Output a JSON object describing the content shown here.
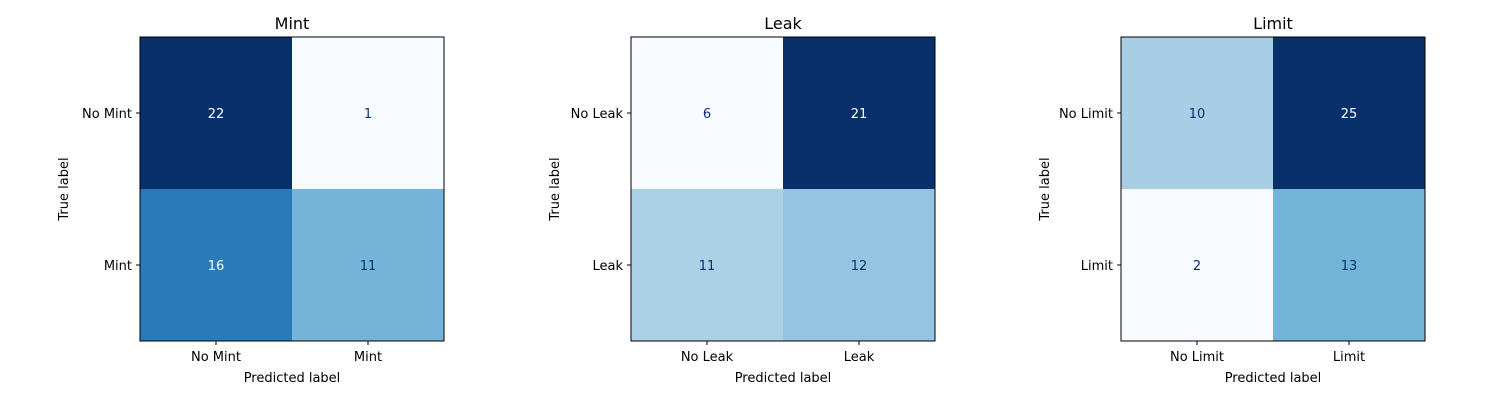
{
  "chart_data": [
    {
      "type": "heatmap",
      "title": "Mint",
      "xlabel": "Predicted label",
      "ylabel": "True label",
      "x_categories": [
        "No Mint",
        "Mint"
      ],
      "y_categories": [
        "No Mint",
        "Mint"
      ],
      "values": [
        [
          22,
          1
        ],
        [
          16,
          11
        ]
      ],
      "grid": false
    },
    {
      "type": "heatmap",
      "title": "Leak",
      "xlabel": "Predicted label",
      "ylabel": "True label",
      "x_categories": [
        "No Leak",
        "Leak"
      ],
      "y_categories": [
        "No Leak",
        "Leak"
      ],
      "values": [
        [
          6,
          21
        ],
        [
          11,
          12
        ]
      ],
      "grid": false
    },
    {
      "type": "heatmap",
      "title": "Limit",
      "xlabel": "Predicted label",
      "ylabel": "True label",
      "x_categories": [
        "No Limit",
        "Limit"
      ],
      "y_categories": [
        "No Limit",
        "Limit"
      ],
      "values": [
        [
          10,
          25
        ],
        [
          2,
          13
        ]
      ],
      "grid": false
    }
  ],
  "colors": {
    "low": "#f7fbff",
    "mid1": "#c6dbef",
    "mid2": "#6baed6",
    "mid3": "#2171b5",
    "high": "#08306b",
    "text_dark": "#08306b",
    "text_light": "#ffffff"
  }
}
